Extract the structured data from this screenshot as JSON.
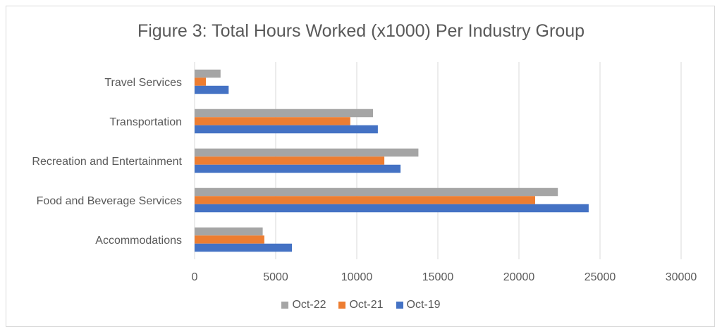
{
  "chart_data": {
    "type": "bar",
    "orientation": "horizontal",
    "title": "Figure 3: Total Hours Worked (x1000) Per Industry Group",
    "xlabel": "",
    "ylabel": "",
    "categories": [
      "Accommodations",
      "Food and Beverage Services",
      "Recreation and Entertainment",
      "Transportation",
      "Travel Services"
    ],
    "series": [
      {
        "name": "Oct-19",
        "color": "#4472c4",
        "values": [
          6000,
          24300,
          12700,
          11300,
          2100
        ]
      },
      {
        "name": "Oct-21",
        "color": "#ed7d31",
        "values": [
          4300,
          21000,
          11700,
          9600,
          700
        ]
      },
      {
        "name": "Oct-22",
        "color": "#a5a5a5",
        "values": [
          4200,
          22400,
          13800,
          11000,
          1600
        ]
      }
    ],
    "xlim": [
      0,
      30000
    ],
    "xticks": [
      0,
      5000,
      10000,
      15000,
      20000,
      25000,
      30000
    ],
    "grid": true,
    "legend_position": "bottom"
  },
  "legend_order": [
    "Oct-22",
    "Oct-21",
    "Oct-19"
  ]
}
